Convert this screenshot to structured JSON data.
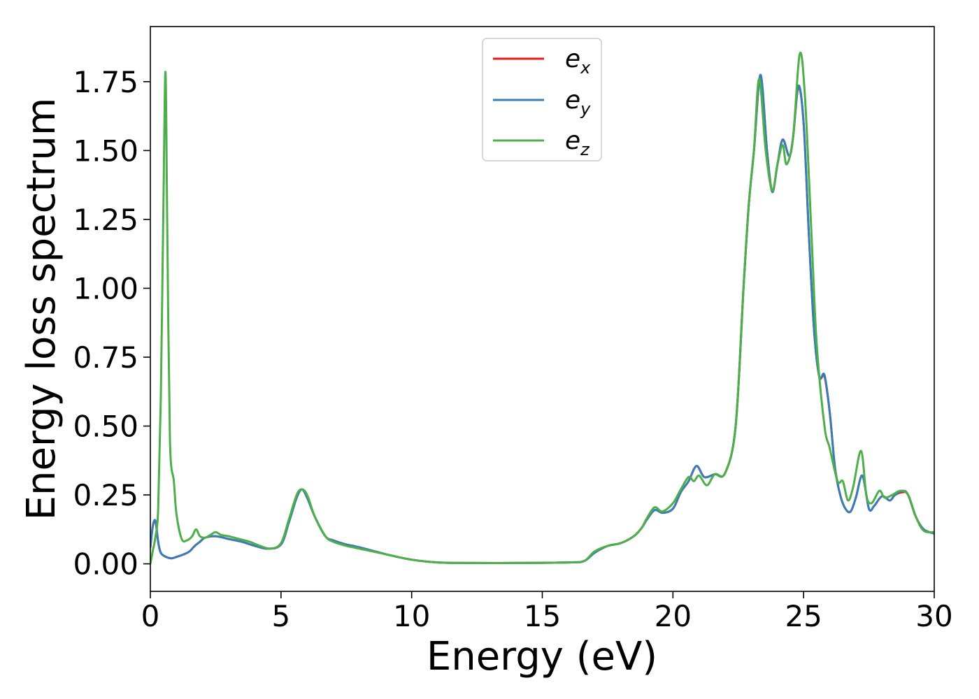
{
  "chart_data": {
    "type": "line",
    "xlabel": "Energy (eV)",
    "ylabel": "Energy loss spectrum",
    "xlim": [
      0,
      30
    ],
    "ylim": [
      -0.1,
      1.95
    ],
    "xticks": [
      0,
      5,
      10,
      15,
      20,
      25,
      30
    ],
    "xtick_labels": [
      "0",
      "5",
      "10",
      "15",
      "20",
      "25",
      "30"
    ],
    "yticks": [
      0.0,
      0.25,
      0.5,
      0.75,
      1.0,
      1.25,
      1.5,
      1.75
    ],
    "ytick_labels": [
      "0.00",
      "0.25",
      "0.50",
      "0.75",
      "1.00",
      "1.25",
      "1.50",
      "1.75"
    ],
    "grid": false,
    "legend_position": "top-center",
    "series": [
      {
        "name": "e",
        "subscript": "x",
        "color": "#e41a1c",
        "x": [
          0,
          0.1,
          0.2,
          0.3,
          0.4,
          0.6,
          0.8,
          1.0,
          1.3,
          1.5,
          1.7,
          1.9,
          2.1,
          2.5,
          3.0,
          3.5,
          4.0,
          4.5,
          5.0,
          5.3,
          5.6,
          5.8,
          6.0,
          6.3,
          6.7,
          7.0,
          7.5,
          8.0,
          9.0,
          10.0,
          11.0,
          12.0,
          14.0,
          16.0,
          16.6,
          17.0,
          17.5,
          18.0,
          18.5,
          18.8,
          19.0,
          19.3,
          19.6,
          20.0,
          20.3,
          20.6,
          20.9,
          21.2,
          21.6,
          22.0,
          22.4,
          22.7,
          22.9,
          23.1,
          23.35,
          23.6,
          23.8,
          24.0,
          24.2,
          24.45,
          24.6,
          24.8,
          25.0,
          25.2,
          25.4,
          25.6,
          25.8,
          26.0,
          26.2,
          26.4,
          26.6,
          26.8,
          27.0,
          27.25,
          27.5,
          27.7,
          28.0,
          28.3,
          28.5,
          28.8,
          29.0,
          29.3,
          29.6,
          30.0
        ],
        "y": [
          0.06,
          0.14,
          0.15,
          0.08,
          0.04,
          0.025,
          0.02,
          0.025,
          0.035,
          0.045,
          0.065,
          0.08,
          0.095,
          0.1,
          0.09,
          0.08,
          0.065,
          0.055,
          0.07,
          0.15,
          0.24,
          0.27,
          0.24,
          0.17,
          0.1,
          0.085,
          0.07,
          0.06,
          0.035,
          0.015,
          0.005,
          0.003,
          0.003,
          0.005,
          0.01,
          0.04,
          0.065,
          0.075,
          0.1,
          0.13,
          0.16,
          0.195,
          0.185,
          0.2,
          0.26,
          0.3,
          0.355,
          0.315,
          0.325,
          0.33,
          0.5,
          1.0,
          1.3,
          1.5,
          1.77,
          1.5,
          1.35,
          1.45,
          1.54,
          1.48,
          1.55,
          1.73,
          1.6,
          1.2,
          0.85,
          0.68,
          0.68,
          0.55,
          0.35,
          0.25,
          0.2,
          0.19,
          0.24,
          0.32,
          0.2,
          0.21,
          0.245,
          0.23,
          0.25,
          0.26,
          0.25,
          0.17,
          0.125,
          0.11
        ]
      },
      {
        "name": "e",
        "subscript": "y",
        "color": "#377eb8",
        "x": [
          0,
          0.1,
          0.2,
          0.3,
          0.4,
          0.6,
          0.8,
          1.0,
          1.3,
          1.5,
          1.7,
          1.9,
          2.1,
          2.5,
          3.0,
          3.5,
          4.0,
          4.5,
          5.0,
          5.3,
          5.6,
          5.8,
          6.0,
          6.3,
          6.7,
          7.0,
          7.5,
          8.0,
          9.0,
          10.0,
          11.0,
          12.0,
          14.0,
          16.0,
          16.6,
          17.0,
          17.5,
          18.0,
          18.5,
          18.8,
          19.0,
          19.3,
          19.6,
          20.0,
          20.3,
          20.6,
          20.9,
          21.2,
          21.6,
          22.0,
          22.4,
          22.7,
          22.9,
          23.1,
          23.35,
          23.6,
          23.8,
          24.0,
          24.2,
          24.45,
          24.6,
          24.8,
          25.0,
          25.2,
          25.4,
          25.6,
          25.8,
          26.0,
          26.2,
          26.4,
          26.6,
          26.8,
          27.0,
          27.25,
          27.5,
          27.7,
          28.0,
          28.3,
          28.5,
          28.8,
          29.0,
          29.3,
          29.6,
          30.0
        ],
        "y": [
          0.06,
          0.14,
          0.155,
          0.08,
          0.04,
          0.025,
          0.02,
          0.025,
          0.035,
          0.045,
          0.065,
          0.08,
          0.095,
          0.1,
          0.09,
          0.08,
          0.065,
          0.055,
          0.07,
          0.15,
          0.24,
          0.27,
          0.24,
          0.17,
          0.1,
          0.085,
          0.07,
          0.06,
          0.035,
          0.015,
          0.005,
          0.003,
          0.003,
          0.005,
          0.01,
          0.04,
          0.065,
          0.075,
          0.1,
          0.13,
          0.16,
          0.195,
          0.185,
          0.2,
          0.26,
          0.3,
          0.355,
          0.315,
          0.325,
          0.33,
          0.5,
          1.0,
          1.3,
          1.5,
          1.775,
          1.5,
          1.35,
          1.45,
          1.54,
          1.48,
          1.55,
          1.735,
          1.6,
          1.2,
          0.85,
          0.68,
          0.685,
          0.55,
          0.35,
          0.25,
          0.2,
          0.19,
          0.24,
          0.32,
          0.2,
          0.21,
          0.245,
          0.23,
          0.25,
          0.265,
          0.25,
          0.17,
          0.125,
          0.11
        ]
      },
      {
        "name": "e",
        "subscript": "z",
        "color": "#4daf4a",
        "x": [
          0,
          0.1,
          0.2,
          0.3,
          0.4,
          0.5,
          0.58,
          0.65,
          0.75,
          0.9,
          1.0,
          1.2,
          1.4,
          1.6,
          1.75,
          1.9,
          2.1,
          2.3,
          2.5,
          2.7,
          3.0,
          3.4,
          3.8,
          4.2,
          4.6,
          5.0,
          5.3,
          5.6,
          5.8,
          6.0,
          6.3,
          6.7,
          7.0,
          7.5,
          8.0,
          9.0,
          10.0,
          11.0,
          12.0,
          14.0,
          16.0,
          16.6,
          17.0,
          17.5,
          18.0,
          18.5,
          18.8,
          19.0,
          19.3,
          19.6,
          20.0,
          20.3,
          20.6,
          20.8,
          21.0,
          21.3,
          21.6,
          22.0,
          22.4,
          22.7,
          22.9,
          23.1,
          23.3,
          23.55,
          23.8,
          24.0,
          24.2,
          24.35,
          24.6,
          24.85,
          25.05,
          25.3,
          25.5,
          25.8,
          26.0,
          26.3,
          26.5,
          26.7,
          26.9,
          27.2,
          27.4,
          27.6,
          27.9,
          28.1,
          28.4,
          28.7,
          29.0,
          29.3,
          29.6,
          30.0
        ],
        "y": [
          0.0,
          0.05,
          0.1,
          0.2,
          0.6,
          1.3,
          1.785,
          1.2,
          0.45,
          0.3,
          0.18,
          0.09,
          0.085,
          0.1,
          0.125,
          0.1,
          0.095,
          0.105,
          0.115,
          0.105,
          0.1,
          0.09,
          0.08,
          0.065,
          0.055,
          0.075,
          0.16,
          0.25,
          0.27,
          0.25,
          0.17,
          0.1,
          0.08,
          0.065,
          0.055,
          0.035,
          0.015,
          0.005,
          0.003,
          0.003,
          0.005,
          0.01,
          0.045,
          0.065,
          0.075,
          0.1,
          0.13,
          0.165,
          0.205,
          0.19,
          0.22,
          0.27,
          0.315,
          0.3,
          0.32,
          0.285,
          0.325,
          0.33,
          0.5,
          1.0,
          1.3,
          1.5,
          1.76,
          1.5,
          1.355,
          1.45,
          1.52,
          1.45,
          1.55,
          1.85,
          1.7,
          1.2,
          0.8,
          0.5,
          0.42,
          0.3,
          0.3,
          0.23,
          0.28,
          0.41,
          0.25,
          0.22,
          0.265,
          0.24,
          0.25,
          0.265,
          0.25,
          0.17,
          0.12,
          0.115
        ]
      }
    ]
  }
}
